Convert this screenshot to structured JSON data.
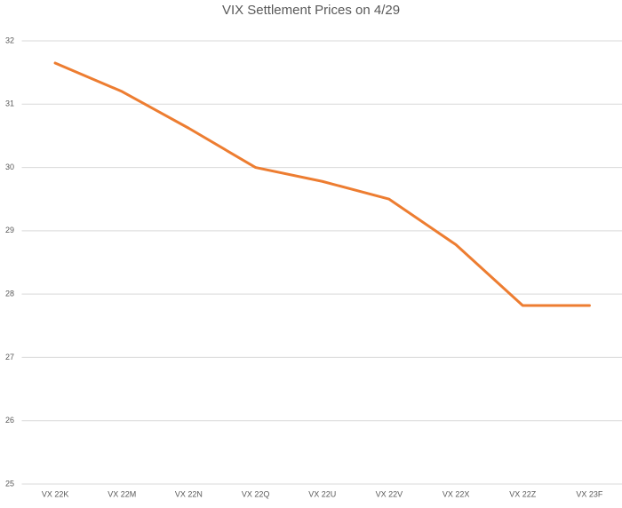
{
  "chart_data": {
    "type": "line",
    "title": "VIX Settlement Prices on 4/29",
    "categories": [
      "VX 22K",
      "VX 22M",
      "VX 22N",
      "VX 22Q",
      "VX 22U",
      "VX 22V",
      "VX 22X",
      "VX 22Z",
      "VX 23F"
    ],
    "series": [
      {
        "color": "#ed7d31",
        "values": [
          31.65,
          31.2,
          30.62,
          30.0,
          29.78,
          29.5,
          28.78,
          27.82,
          27.82
        ]
      }
    ],
    "ylim": [
      25,
      32
    ],
    "yticks": [
      25,
      26,
      27,
      28,
      29,
      30,
      31,
      32
    ],
    "grid": true
  }
}
